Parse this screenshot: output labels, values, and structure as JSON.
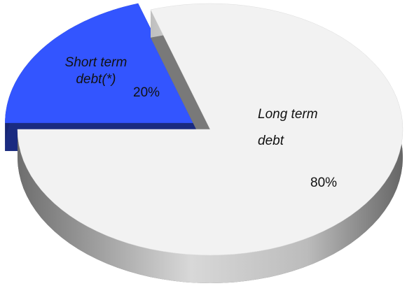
{
  "chart_data": {
    "type": "pie",
    "categories": [
      "Short term debt(*)",
      "Long term debt"
    ],
    "values": [
      20,
      80
    ],
    "value_labels": [
      "20%",
      "80%"
    ],
    "colors": [
      "#3355ff",
      "#f2f2f2"
    ]
  }
}
